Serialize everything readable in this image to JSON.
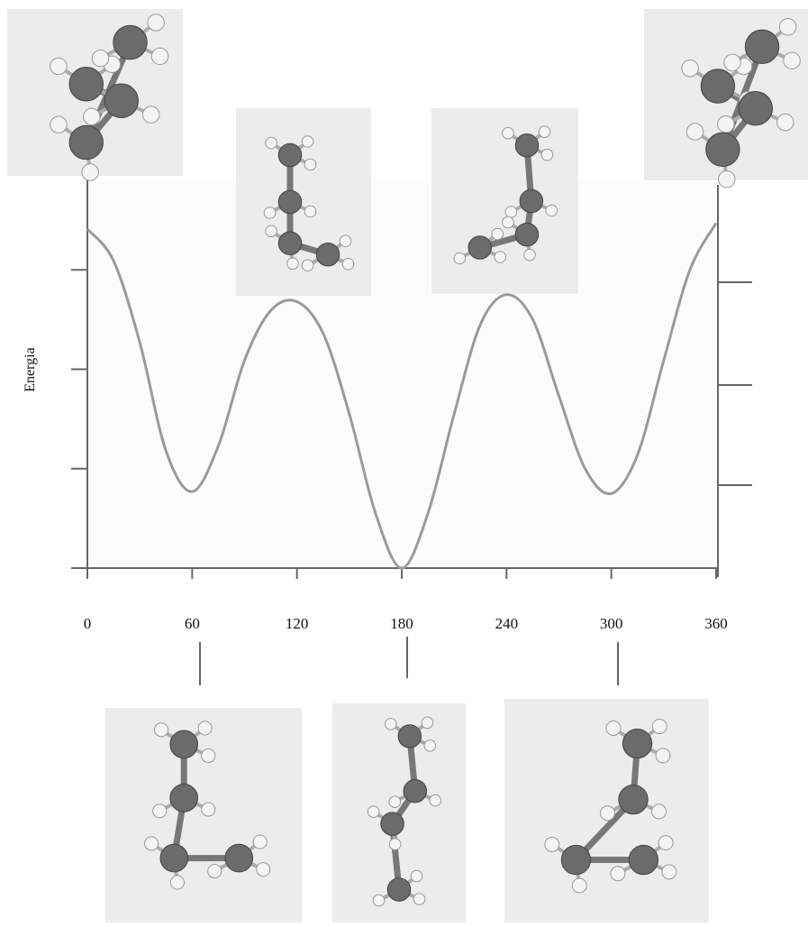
{
  "chart_data": {
    "type": "line",
    "y_label": "Energia",
    "x": [
      0,
      15,
      30,
      45,
      60,
      75,
      90,
      105,
      120,
      135,
      150,
      165,
      180,
      195,
      210,
      225,
      240,
      255,
      270,
      285,
      300,
      315,
      330,
      345,
      360
    ],
    "series": [
      {
        "color": "#9a9a9a",
        "values": [
          3.41,
          3.09,
          2.27,
          1.18,
          0.77,
          1.23,
          2.09,
          2.59,
          2.68,
          2.36,
          1.55,
          0.55,
          0,
          0.55,
          1.55,
          2.45,
          2.75,
          2.5,
          1.73,
          1.0,
          0.75,
          1.14,
          2.09,
          3.0,
          3.47
        ]
      }
    ],
    "xlim": [
      0,
      360
    ],
    "xticks": [
      0,
      60,
      120,
      180,
      240,
      300,
      360
    ],
    "ylim": [
      0,
      3.9
    ],
    "yticks": [
      0,
      1,
      2,
      3
    ]
  }
}
